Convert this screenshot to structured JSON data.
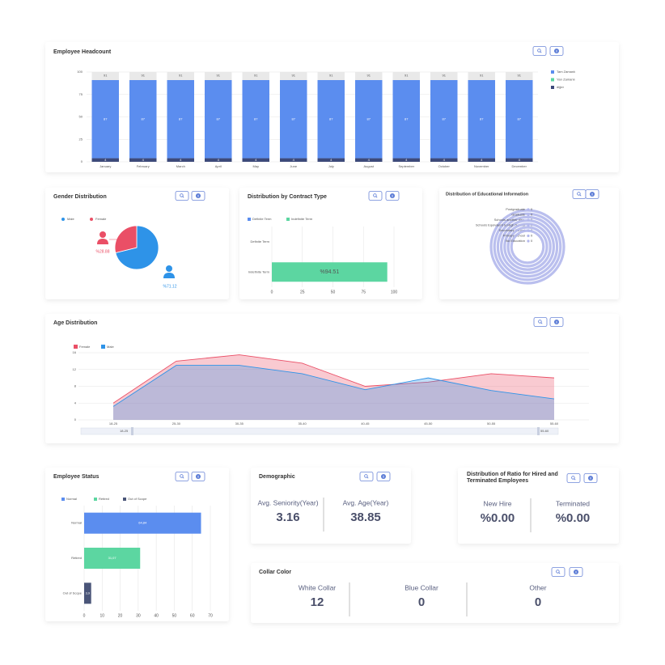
{
  "chart_data": [
    {
      "type": "bar",
      "stacked": true,
      "title": "Employee Headcount",
      "categories": [
        "January",
        "February",
        "March",
        "April",
        "May",
        "June",
        "July",
        "August",
        "September",
        "October",
        "November",
        "December"
      ],
      "series": [
        {
          "name": "Tam Zamanlı",
          "color": "#5b8def",
          "values": [
            87,
            87,
            87,
            87,
            87,
            87,
            87,
            87,
            87,
            87,
            87,
            87
          ]
        },
        {
          "name": "Yarı Zamanlı",
          "color": "#5cd6a1",
          "values": [
            0,
            0,
            0,
            0,
            0,
            0,
            0,
            0,
            0,
            0,
            0,
            0
          ]
        },
        {
          "name": "diğer",
          "color": "#3d4a7a",
          "values": [
            4,
            4,
            4,
            4,
            4,
            4,
            4,
            4,
            4,
            4,
            4,
            4
          ]
        }
      ],
      "totals": [
        91,
        91,
        91,
        91,
        91,
        91,
        91,
        91,
        91,
        91,
        91,
        91
      ],
      "ylim": [
        0,
        100
      ],
      "yticks": [
        0,
        25,
        50,
        75,
        100
      ],
      "grid": true,
      "legend": "right"
    },
    {
      "type": "pie",
      "title": "Gender Distribution",
      "categories": [
        "Male",
        "Female"
      ],
      "values": [
        71.12,
        28.88
      ],
      "value_labels": [
        "%71.12",
        "%28.88"
      ],
      "colors": [
        "#2e93e8",
        "#ea4f66"
      ]
    },
    {
      "type": "bar",
      "orientation": "horizontal",
      "title": "Distribution by Contract Type",
      "categories": [
        "Definite Term",
        "Indefinite Term"
      ],
      "series": [
        {
          "name": "Definite Term",
          "color": "#5b8def",
          "values": [
            0,
            null
          ]
        },
        {
          "name": "Indefinite Term",
          "color": "#5cd6a1",
          "values": [
            null,
            94.51
          ],
          "value_labels": [
            null,
            "%94.51"
          ]
        }
      ],
      "xlim": [
        0,
        100
      ],
      "xticks": [
        0,
        25,
        50,
        75,
        100
      ],
      "grid": true
    },
    {
      "type": "radialBar",
      "title": "Distribution of Educational Information",
      "categories": [
        "Postgraduate",
        "Graduate",
        "Schools another disc.",
        "Schools Equivalent to High School",
        "Secondary School",
        "Primary School",
        "No Education"
      ],
      "values": [
        0,
        0,
        0,
        0,
        0,
        0,
        0
      ],
      "color": "#b3b8ec"
    },
    {
      "type": "area",
      "title": "Age Distribution",
      "categories": [
        "18-25",
        "25-30",
        "30-35",
        "35-40",
        "40-45",
        "45-50",
        "50-55",
        "55-60"
      ],
      "series": [
        {
          "name": "Female",
          "color": "#ea4f66",
          "values": [
            4,
            14,
            15.5,
            13.5,
            8,
            9,
            11,
            10
          ]
        },
        {
          "name": "Male",
          "color": "#2e93e8",
          "values": [
            3.2,
            13,
            13,
            11,
            7.2,
            10,
            7,
            5
          ]
        }
      ],
      "ylim": [
        0,
        16
      ],
      "yticks": [
        0,
        4,
        8,
        12,
        16
      ],
      "grid": true
    },
    {
      "type": "bar",
      "orientation": "horizontal",
      "title": "Employee Status",
      "categories": [
        "Normal",
        "Retired",
        "Out of Scope"
      ],
      "values": [
        64.84,
        31.07,
        3.9
      ],
      "value_labels": [
        "64,84",
        "31,07",
        "3,9"
      ],
      "colors": [
        "#5b8def",
        "#5cd6a1",
        "#4a5578"
      ],
      "xlim": [
        0,
        70
      ],
      "xticks": [
        0,
        10,
        20,
        30,
        40,
        50,
        60,
        70
      ],
      "grid": true
    }
  ],
  "demographic": {
    "title": "Demographic",
    "items": [
      {
        "label": "Avg. Seniority(Year)",
        "value": 3.16
      },
      {
        "label": "Avg. Age(Year)",
        "value": 38.85
      }
    ]
  },
  "hire_ratio": {
    "title": "Distribution of Ratio for Hired and Terminated Employees",
    "items": [
      {
        "label": "New Hire",
        "value": "%0.00"
      },
      {
        "label": "Terminated",
        "value": "%0.00"
      }
    ]
  },
  "collar_color": {
    "title": "Collar Color",
    "items": [
      {
        "label": "White Collar",
        "value": 12
      },
      {
        "label": "Blue Collar",
        "value": 0
      },
      {
        "label": "Other",
        "value": 0
      }
    ]
  }
}
